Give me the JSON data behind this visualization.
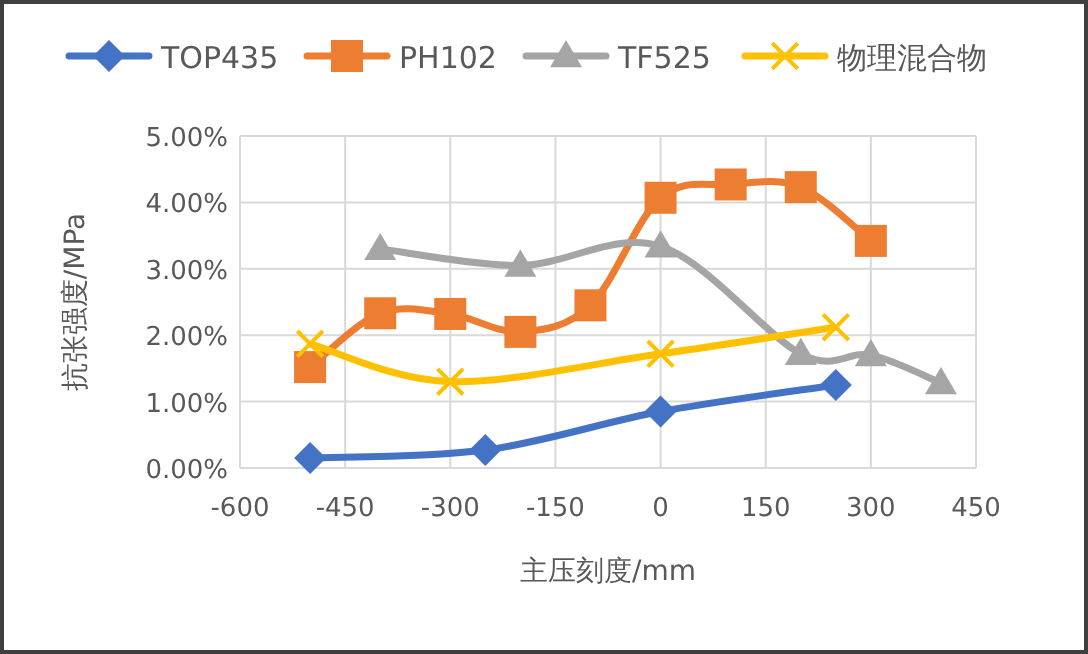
{
  "chart_data": {
    "type": "line",
    "xlabel": "主压刻度/mm",
    "ylabel": "抗张强度/MPa",
    "xlim": [
      -600,
      450
    ],
    "xticks": [
      -600,
      -450,
      -300,
      -150,
      0,
      150,
      300,
      450
    ],
    "ylim": [
      0,
      5
    ],
    "yticks": [
      {
        "value": 0,
        "label": "0.00%"
      },
      {
        "value": 1,
        "label": "1.00%"
      },
      {
        "value": 2,
        "label": "2.00%"
      },
      {
        "value": 3,
        "label": "3.00%"
      },
      {
        "value": 4,
        "label": "4.00%"
      },
      {
        "value": 5,
        "label": "5.00%"
      }
    ],
    "grid": true,
    "legend": "top",
    "series": [
      {
        "name": "TOP435",
        "color": "#4472c4",
        "marker": "diamond",
        "x": [
          -500,
          -250,
          0,
          250
        ],
        "values": [
          0.15,
          0.27,
          0.85,
          1.25
        ]
      },
      {
        "name": "PH102",
        "color": "#ed7d31",
        "marker": "square",
        "x": [
          -500,
          -400,
          -300,
          -200,
          -100,
          0,
          100,
          200,
          300
        ],
        "values": [
          1.52,
          2.33,
          2.32,
          2.05,
          2.45,
          4.07,
          4.27,
          4.23,
          3.42
        ]
      },
      {
        "name": "TF525",
        "color": "#a5a5a5",
        "marker": "triangle",
        "x": [
          -400,
          -200,
          0,
          200,
          300,
          400
        ],
        "values": [
          3.3,
          3.05,
          3.34,
          1.72,
          1.7,
          1.28
        ]
      },
      {
        "name": "物理混合物",
        "color": "#ffc000",
        "marker": "cross",
        "x": [
          -500,
          -300,
          0,
          250
        ],
        "values": [
          1.87,
          1.3,
          1.72,
          2.12
        ]
      }
    ]
  }
}
